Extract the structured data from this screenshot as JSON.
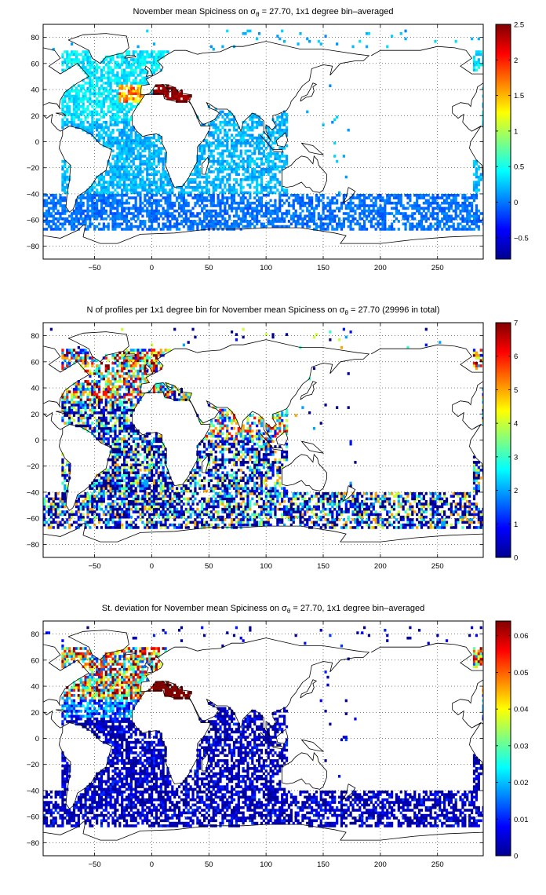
{
  "colors": {
    "jet_stops": [
      "#00008f",
      "#0000ff",
      "#0080ff",
      "#00ffff",
      "#80ff80",
      "#ffff00",
      "#ff8000",
      "#ff0000",
      "#800000"
    ],
    "coast": "#000000",
    "grid": "#000000",
    "frame": "#000000"
  },
  "chart_data": [
    {
      "type": "heatmap",
      "title_main": "November mean Spiciness on ",
      "title_sigma": "σ",
      "title_sub": "θ",
      "title_rest": " = 27.70, 1x1 degree bin–averaged",
      "xlim": [
        -95,
        290
      ],
      "ylim": [
        -90,
        90
      ],
      "xticks": [
        -50,
        0,
        50,
        100,
        150,
        200,
        250
      ],
      "yticks": [
        -80,
        -60,
        -40,
        -20,
        0,
        20,
        40,
        60,
        80
      ],
      "xtick_labels": [
        "−50",
        "0",
        "50",
        "100",
        "150",
        "200",
        "250"
      ],
      "ytick_labels": [
        "−80",
        "−60",
        "−40",
        "−20",
        "0",
        "20",
        "40",
        "60",
        "80"
      ],
      "clim": [
        -0.8,
        2.5
      ],
      "cbar_ticks": [
        -0.5,
        0,
        0.5,
        1,
        1.5,
        2,
        2.5
      ],
      "cbar_labels": [
        "−0.5",
        "0",
        "0.5",
        "1",
        "1.5",
        "2",
        "2.5"
      ],
      "grid": true,
      "field": "spice"
    },
    {
      "type": "heatmap",
      "title_main": "N of profiles per 1x1 degree bin for November mean Spiciness on ",
      "title_sigma": "σ",
      "title_sub": "θ",
      "title_rest": " = 27.70 (29996 in total)",
      "xlim": [
        -95,
        290
      ],
      "ylim": [
        -90,
        90
      ],
      "xticks": [
        -50,
        0,
        50,
        100,
        150,
        200,
        250
      ],
      "yticks": [
        -80,
        -60,
        -40,
        -20,
        0,
        20,
        40,
        60,
        80
      ],
      "xtick_labels": [
        "−50",
        "0",
        "50",
        "100",
        "150",
        "200",
        "250"
      ],
      "ytick_labels": [
        "−80",
        "−60",
        "−40",
        "−20",
        "0",
        "20",
        "40",
        "60",
        "80"
      ],
      "clim": [
        0,
        7
      ],
      "cbar_ticks": [
        0,
        1,
        2,
        3,
        4,
        5,
        6,
        7
      ],
      "cbar_labels": [
        "0",
        "1",
        "2",
        "3",
        "4",
        "5",
        "6",
        "7"
      ],
      "grid": true,
      "field": "count"
    },
    {
      "type": "heatmap",
      "title_main": "St. deviation for November mean Spiciness on ",
      "title_sigma": "σ",
      "title_sub": "θ",
      "title_rest": " = 27.70, 1x1 degree bin–averaged",
      "xlim": [
        -95,
        290
      ],
      "ylim": [
        -90,
        90
      ],
      "xticks": [
        -50,
        0,
        50,
        100,
        150,
        200,
        250
      ],
      "yticks": [
        -80,
        -60,
        -40,
        -20,
        0,
        20,
        40,
        60,
        80
      ],
      "xtick_labels": [
        "−50",
        "0",
        "50",
        "100",
        "150",
        "200",
        "250"
      ],
      "ytick_labels": [
        "−80",
        "−60",
        "−40",
        "−20",
        "0",
        "20",
        "40",
        "60",
        "80"
      ],
      "clim": [
        0,
        0.064
      ],
      "cbar_ticks": [
        0,
        0.01,
        0.02,
        0.03,
        0.04,
        0.05,
        0.06
      ],
      "cbar_labels": [
        "0",
        "0.01",
        "0.02",
        "0.03",
        "0.04",
        "0.05",
        "0.06"
      ],
      "grid": true,
      "field": "std"
    }
  ]
}
